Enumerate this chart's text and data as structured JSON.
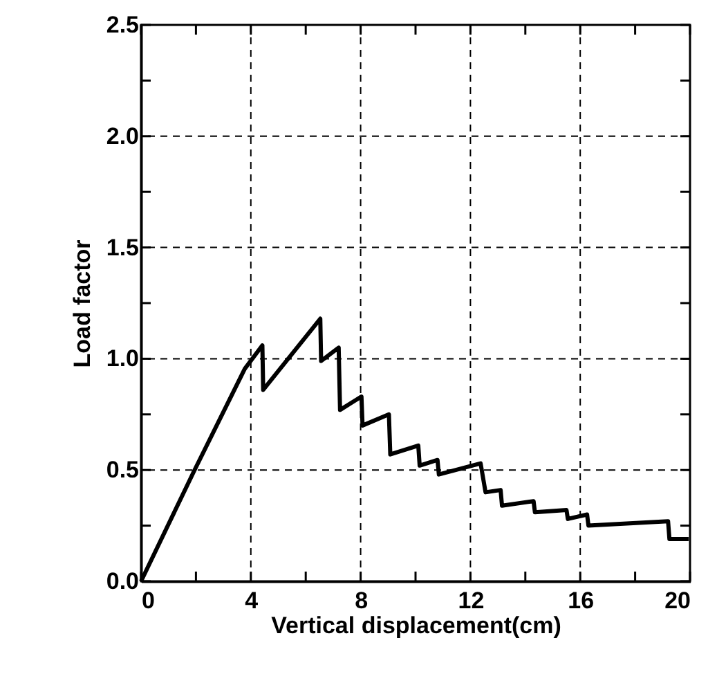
{
  "chart_data": {
    "type": "line",
    "xlabel": "Vertical displacement(cm)",
    "ylabel": "Load factor",
    "x": [
      0,
      1.95,
      3.78,
      4.42,
      4.45,
      6.53,
      6.56,
      7.2,
      7.25,
      8.03,
      8.07,
      9.03,
      9.08,
      10.1,
      10.15,
      10.8,
      10.85,
      12.37,
      12.55,
      13.1,
      13.15,
      14.3,
      14.35,
      15.5,
      15.55,
      16.25,
      16.3,
      19.2,
      19.25,
      19.95
    ],
    "series": [
      {
        "color": "#000000",
        "values": [
          0,
          0.5,
          0.955,
          1.06,
          0.86,
          1.18,
          0.99,
          1.05,
          0.77,
          0.83,
          0.7,
          0.75,
          0.57,
          0.61,
          0.52,
          0.545,
          0.48,
          0.53,
          0.4,
          0.41,
          0.34,
          0.36,
          0.31,
          0.32,
          0.28,
          0.3,
          0.25,
          0.27,
          0.19,
          0.19
        ]
      }
    ],
    "xlim": [
      0,
      20
    ],
    "xticks": [
      0,
      {
        "value": 2,
        "label": null
      },
      4,
      {
        "value": 6,
        "label": null
      },
      8,
      {
        "value": 10,
        "label": null
      },
      12,
      {
        "value": 14,
        "label": null
      },
      16,
      {
        "value": 18,
        "label": null
      },
      20
    ],
    "ylim": [
      0,
      2.5
    ],
    "yticks": [
      {
        "value": 0,
        "label": "0.0"
      },
      {
        "value": 0.25,
        "label": null
      },
      {
        "value": 0.5,
        "label": "0.5"
      },
      {
        "value": 0.75,
        "label": null
      },
      {
        "value": 1,
        "label": "1.0"
      },
      {
        "value": 1.25,
        "label": null
      },
      {
        "value": 1.5,
        "label": "1.5"
      },
      {
        "value": 1.75,
        "label": null
      },
      {
        "value": 2,
        "label": "2.0"
      },
      {
        "value": 2.25,
        "label": null
      },
      {
        "value": 2.5,
        "label": "2.5"
      }
    ],
    "grid": true,
    "line_style": "solid",
    "marker": "none"
  }
}
